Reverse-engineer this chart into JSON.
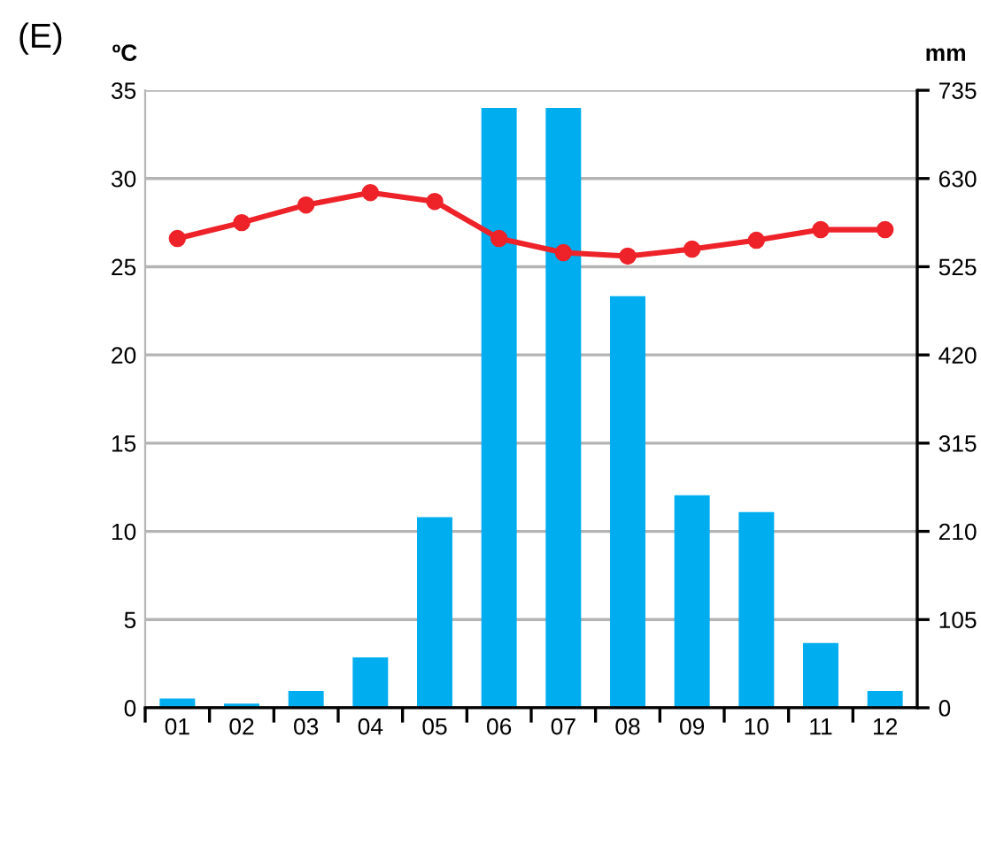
{
  "chart_data": {
    "type": "bar",
    "ylabel": "ºC",
    "y2label": "mm",
    "annotations": [
      "(E)"
    ],
    "categories": [
      "01",
      "02",
      "03",
      "04",
      "05",
      "06",
      "07",
      "08",
      "09",
      "10",
      "11",
      "12"
    ],
    "series": [
      {
        "axis": "y2",
        "color": "#00aeef",
        "values": [
          11,
          5,
          20,
          60,
          227,
          714,
          714,
          490,
          253,
          233,
          77,
          20
        ]
      },
      {
        "type": "line",
        "axis": "y",
        "color": "#ee2229",
        "marker": "circle",
        "values": [
          26.6,
          27.5,
          28.5,
          29.2,
          28.7,
          26.6,
          25.8,
          25.6,
          26.0,
          26.5,
          27.1,
          27.1
        ]
      }
    ],
    "ylim": [
      0,
      35
    ],
    "yticks": [
      0,
      5,
      10,
      15,
      20,
      25,
      30,
      35
    ],
    "y2lim": [
      0,
      735
    ],
    "y2ticks": [
      0,
      105,
      210,
      315,
      420,
      525,
      630,
      735
    ],
    "grid": "y"
  }
}
